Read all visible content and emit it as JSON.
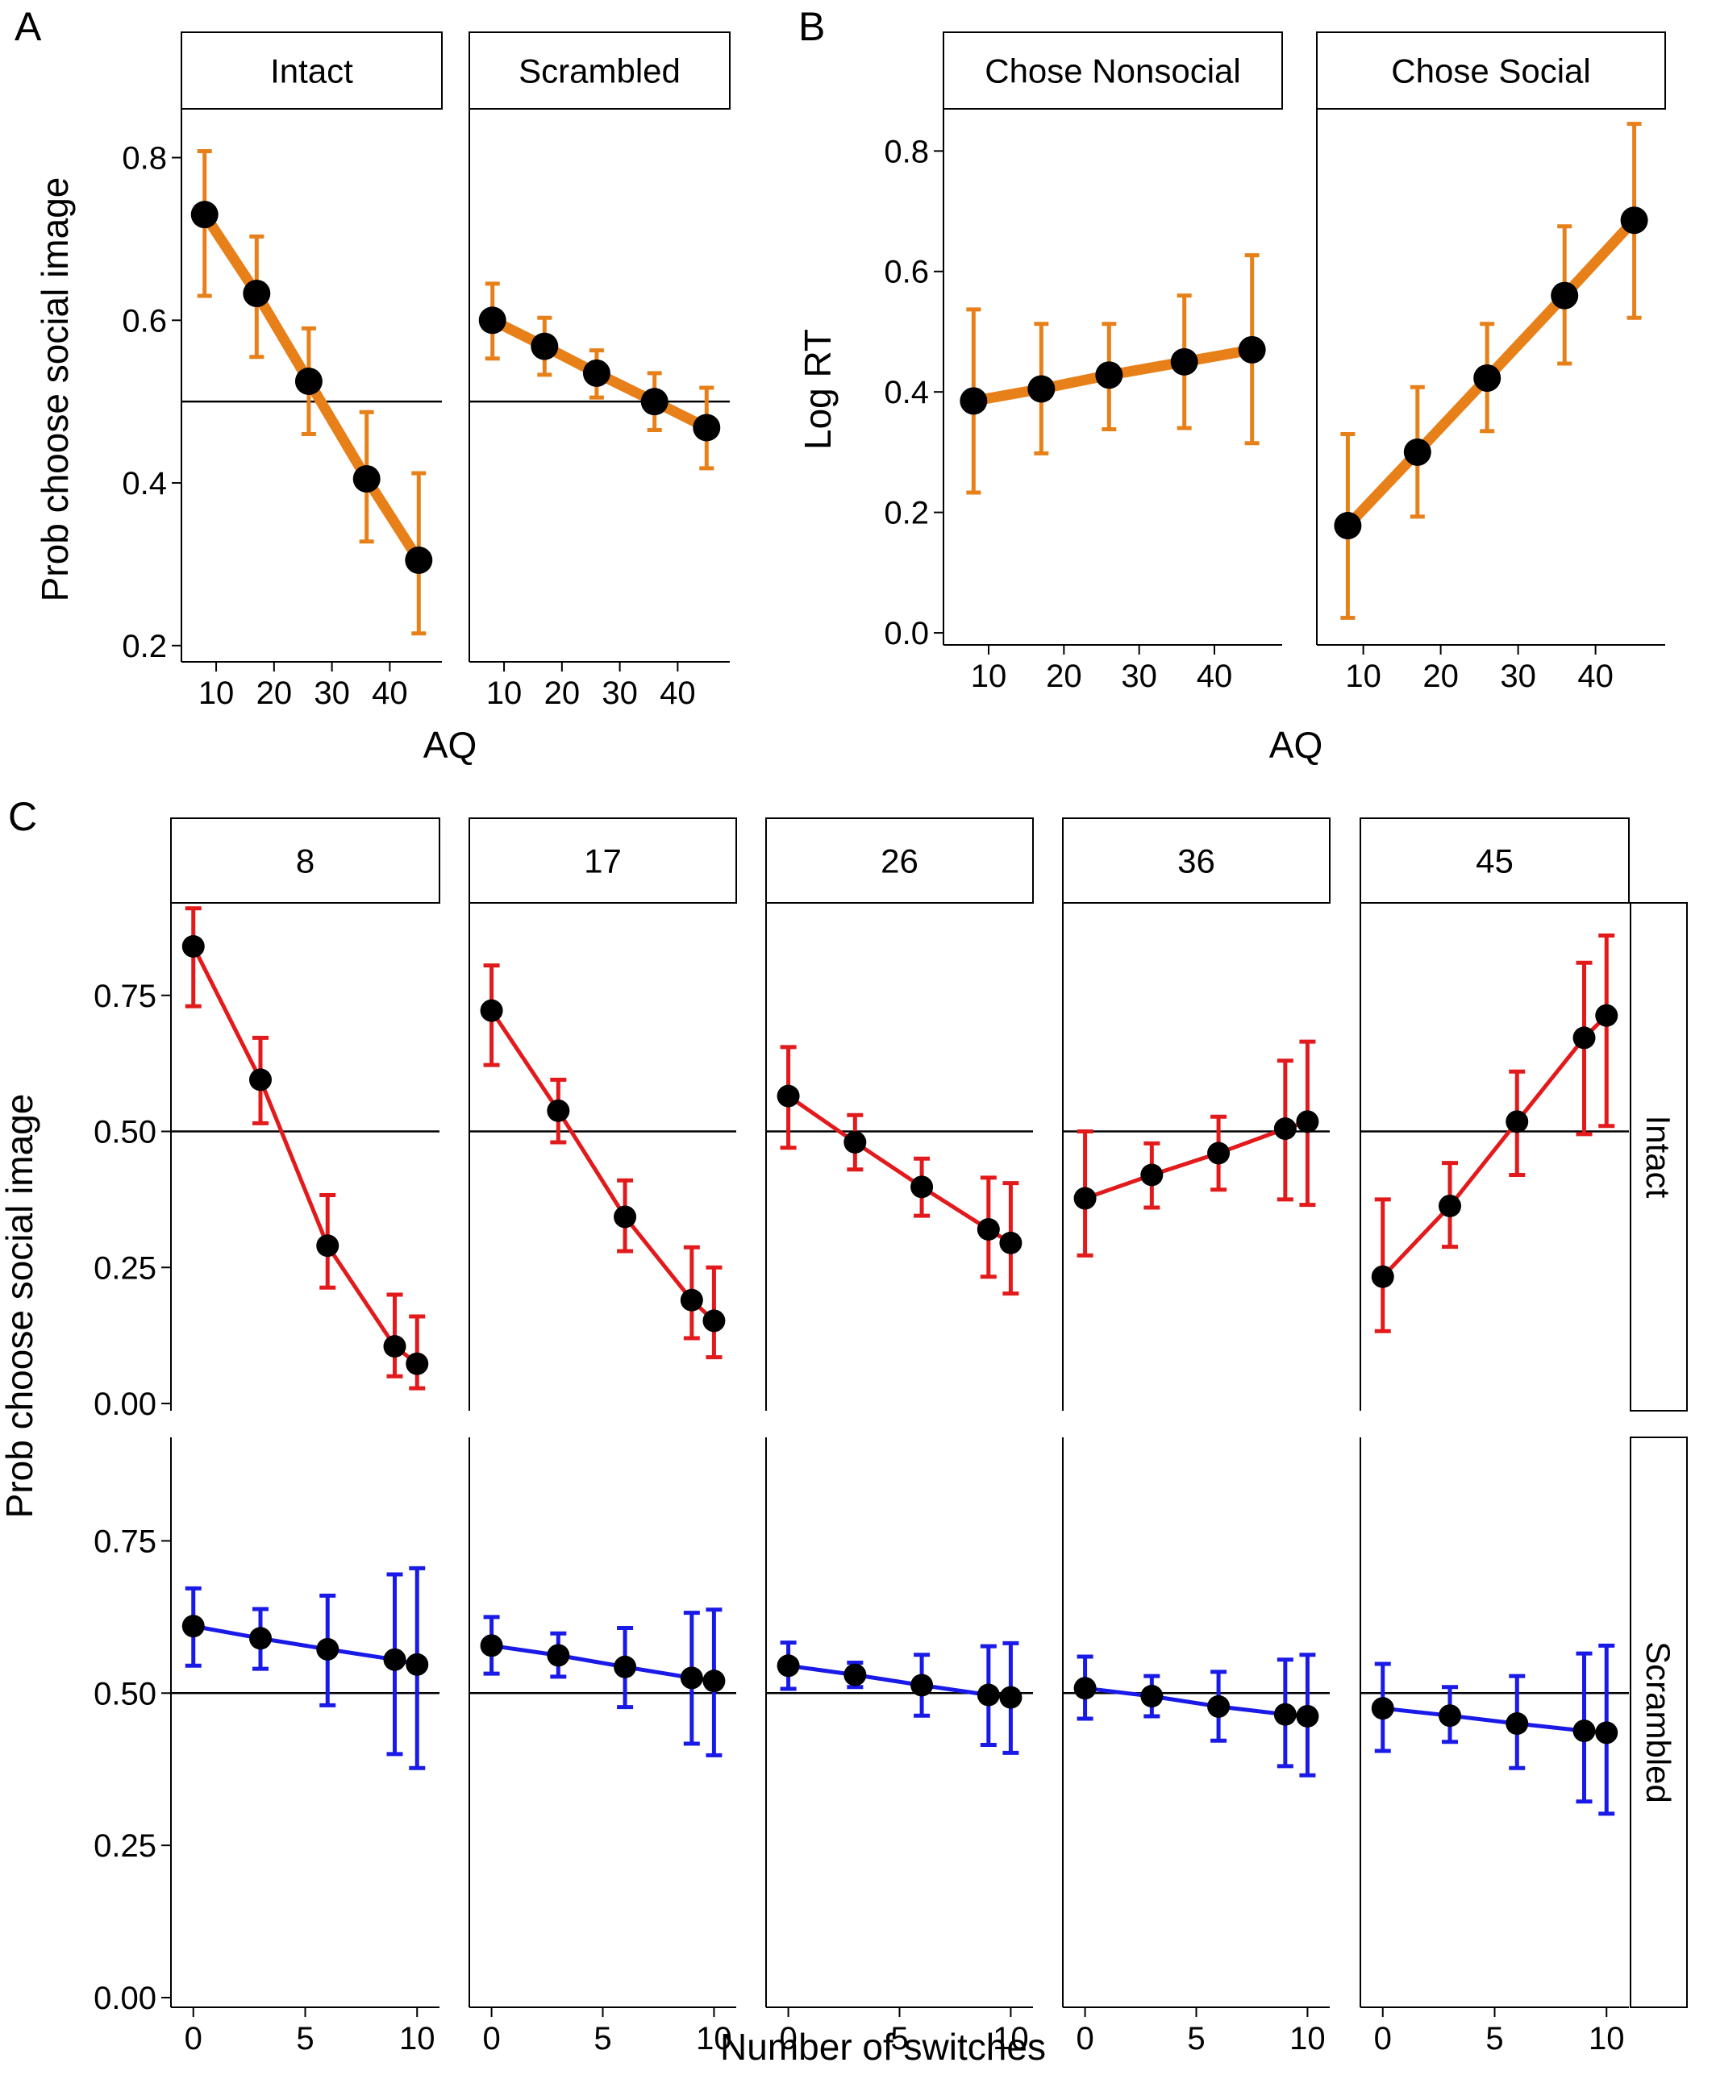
{
  "figure_labels": {
    "a": "A",
    "b": "B",
    "c": "C"
  },
  "colors": {
    "orange": "#E8801A",
    "red": "#E31A1C",
    "blue": "#1A1AE8",
    "point": "#000000",
    "reference": "#000000"
  },
  "chart_data": [
    {
      "id": "A",
      "type": "line",
      "xlabel": "AQ",
      "ylabel": "Prob choose social image",
      "facets": [
        "Intact",
        "Scrambled"
      ],
      "xlim": [
        4,
        49
      ],
      "ylim": [
        0.18,
        0.86
      ],
      "xticks": [
        10,
        20,
        30,
        40
      ],
      "yticks": [
        0.2,
        0.4,
        0.6,
        0.8
      ],
      "ytick_labels": [
        "0.2",
        "0.4",
        "0.6",
        "0.8"
      ],
      "reference_line": 0.5,
      "color": "#E8801A",
      "series": [
        {
          "facet": "Intact",
          "x": [
            8,
            17,
            26,
            36,
            45
          ],
          "y": [
            0.73,
            0.633,
            0.525,
            0.405,
            0.305
          ],
          "lower": [
            0.63,
            0.555,
            0.46,
            0.328,
            0.215
          ],
          "upper": [
            0.808,
            0.703,
            0.59,
            0.487,
            0.412
          ]
        },
        {
          "facet": "Scrambled",
          "x": [
            8,
            17,
            26,
            36,
            45
          ],
          "y": [
            0.6,
            0.568,
            0.535,
            0.5,
            0.468
          ],
          "lower": [
            0.553,
            0.533,
            0.505,
            0.465,
            0.418
          ],
          "upper": [
            0.645,
            0.603,
            0.563,
            0.535,
            0.517
          ]
        }
      ]
    },
    {
      "id": "B",
      "type": "line",
      "xlabel": "AQ",
      "ylabel": "Log RT",
      "facets": [
        "Chose Nonsocial",
        "Chose Social"
      ],
      "xlim": [
        4,
        49
      ],
      "ylim": [
        -0.02,
        0.87
      ],
      "xticks": [
        10,
        20,
        30,
        40
      ],
      "yticks": [
        0.0,
        0.2,
        0.4,
        0.6,
        0.8
      ],
      "ytick_labels": [
        "0.0",
        "0.2",
        "0.4",
        "0.6",
        "0.8"
      ],
      "color": "#E8801A",
      "series": [
        {
          "facet": "Chose Nonsocial",
          "x": [
            8,
            17,
            26,
            36,
            45
          ],
          "y": [
            0.385,
            0.405,
            0.428,
            0.45,
            0.47
          ],
          "lower": [
            0.233,
            0.298,
            0.338,
            0.34,
            0.315
          ],
          "upper": [
            0.537,
            0.513,
            0.513,
            0.56,
            0.627
          ]
        },
        {
          "facet": "Chose Social",
          "x": [
            8,
            17,
            26,
            36,
            45
          ],
          "y": [
            0.178,
            0.3,
            0.423,
            0.56,
            0.685
          ],
          "lower": [
            0.025,
            0.193,
            0.335,
            0.447,
            0.523
          ],
          "upper": [
            0.33,
            0.408,
            0.513,
            0.675,
            0.845
          ]
        }
      ]
    },
    {
      "id": "C",
      "type": "line",
      "xlabel": "Number of switches",
      "ylabel": "Prob choose social image",
      "facets_columns": [
        "8",
        "17",
        "26",
        "36",
        "45"
      ],
      "facets_rows": [
        "Intact",
        "Scrambled"
      ],
      "xlim": [
        -1,
        11
      ],
      "ylim": [
        0,
        0.92
      ],
      "xticks": [
        0,
        5,
        10
      ],
      "yticks": [
        0,
        0.25,
        0.5,
        0.75
      ],
      "ytick_labels": [
        "0.00",
        "0.25",
        "0.50",
        "0.75"
      ],
      "reference_line": 0.5,
      "row_colors": [
        "#E31A1C",
        "#1A1AE8"
      ],
      "x": [
        0,
        3,
        6,
        9,
        10
      ],
      "rows": [
        {
          "facet": "Intact",
          "panels": [
            {
              "y": [
                0.84,
                0.595,
                0.29,
                0.105,
                0.073
              ],
              "lower": [
                0.73,
                0.515,
                0.213,
                0.05,
                0.028
              ],
              "upper": [
                0.91,
                0.672,
                0.383,
                0.2,
                0.16
              ]
            },
            {
              "y": [
                0.722,
                0.538,
                0.343,
                0.19,
                0.152
              ],
              "lower": [
                0.622,
                0.48,
                0.28,
                0.12,
                0.085
              ],
              "upper": [
                0.805,
                0.595,
                0.41,
                0.287,
                0.25
              ]
            },
            {
              "y": [
                0.565,
                0.48,
                0.398,
                0.32,
                0.295
              ],
              "lower": [
                0.47,
                0.43,
                0.345,
                0.233,
                0.202
              ],
              "upper": [
                0.655,
                0.53,
                0.45,
                0.415,
                0.405
              ]
            },
            {
              "y": [
                0.377,
                0.42,
                0.46,
                0.505,
                0.518
              ],
              "lower": [
                0.272,
                0.36,
                0.393,
                0.375,
                0.365
              ],
              "upper": [
                0.5,
                0.478,
                0.527,
                0.63,
                0.665
              ]
            },
            {
              "y": [
                0.233,
                0.363,
                0.518,
                0.672,
                0.713
              ],
              "lower": [
                0.133,
                0.288,
                0.42,
                0.495,
                0.51
              ],
              "upper": [
                0.375,
                0.442,
                0.61,
                0.81,
                0.86
              ]
            }
          ]
        },
        {
          "facet": "Scrambled",
          "panels": [
            {
              "y": [
                0.61,
                0.59,
                0.572,
                0.555,
                0.547
              ],
              "lower": [
                0.545,
                0.54,
                0.48,
                0.4,
                0.377
              ],
              "upper": [
                0.672,
                0.638,
                0.66,
                0.695,
                0.705
              ]
            },
            {
              "y": [
                0.578,
                0.562,
                0.543,
                0.525,
                0.52
              ],
              "lower": [
                0.532,
                0.527,
                0.477,
                0.417,
                0.398
              ],
              "upper": [
                0.625,
                0.598,
                0.607,
                0.632,
                0.637
              ]
            },
            {
              "y": [
                0.545,
                0.53,
                0.513,
                0.497,
                0.493
              ],
              "lower": [
                0.507,
                0.51,
                0.463,
                0.415,
                0.402
              ],
              "upper": [
                0.583,
                0.55,
                0.563,
                0.577,
                0.582
              ]
            },
            {
              "y": [
                0.508,
                0.495,
                0.478,
                0.465,
                0.462
              ],
              "lower": [
                0.458,
                0.462,
                0.422,
                0.38,
                0.365
              ],
              "upper": [
                0.56,
                0.528,
                0.535,
                0.555,
                0.563
              ]
            },
            {
              "y": [
                0.475,
                0.463,
                0.45,
                0.438,
                0.435
              ],
              "lower": [
                0.405,
                0.42,
                0.377,
                0.322,
                0.302
              ],
              "upper": [
                0.548,
                0.51,
                0.528,
                0.565,
                0.578
              ]
            }
          ]
        }
      ]
    }
  ]
}
